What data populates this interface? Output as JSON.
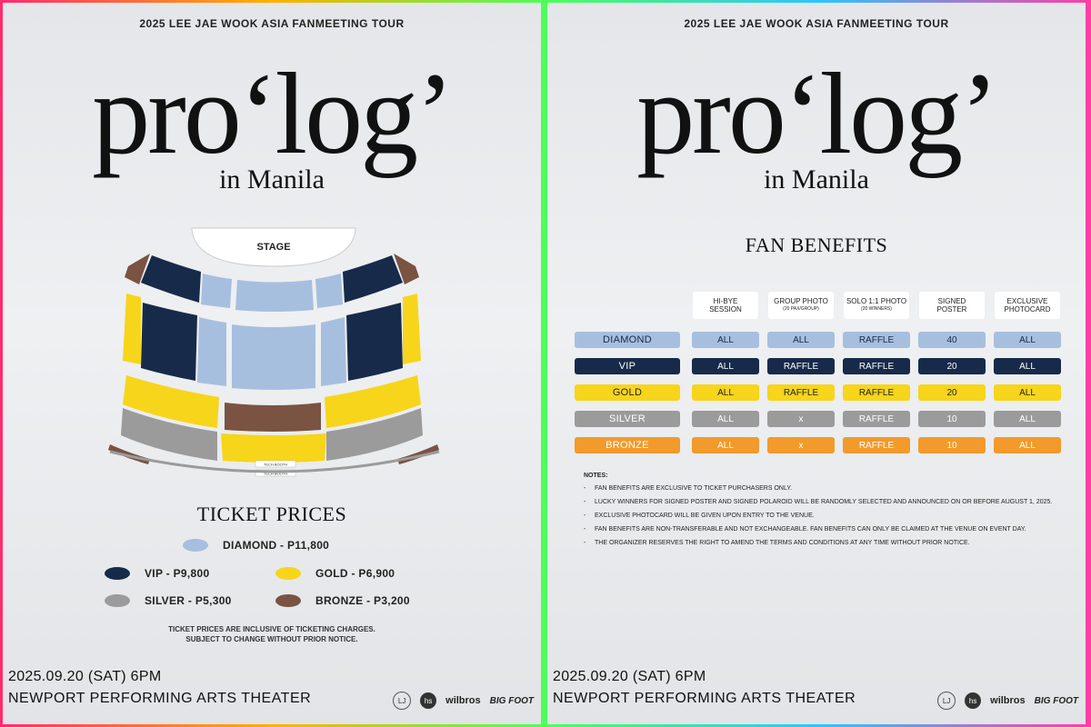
{
  "colors": {
    "diamond": "#a7bfdf",
    "vip": "#172a4a",
    "gold": "#f7d51a",
    "silver": "#9b9b9b",
    "bronze": "#7a5342",
    "bronze_table": "#f29a2b"
  },
  "header": {
    "tour": "2025 LEE JAE WOOK ASIA FANMEETING TOUR",
    "title": "pro‘log’",
    "subtitle": "in Manila"
  },
  "seating": {
    "stage": "STAGE",
    "tech_booth_1": "TECH BOOTH",
    "tech_booth_2": "TECH BOOTH"
  },
  "ticket_prices": {
    "title": "TICKET PRICES",
    "items": [
      {
        "tier": "diamond",
        "label": "DIAMOND - P11,800"
      },
      {
        "tier": "vip",
        "label": "VIP - P9,800"
      },
      {
        "tier": "gold",
        "label": "GOLD - P6,900"
      },
      {
        "tier": "silver",
        "label": "SILVER - P5,300"
      },
      {
        "tier": "bronze",
        "label": "BRONZE - P3,200"
      }
    ],
    "note_line1": "TICKET PRICES ARE INCLUSIVE OF TICKETING CHARGES.",
    "note_line2": "SUBJECT TO CHANGE WITHOUT PRIOR NOTICE."
  },
  "event": {
    "date": "2025.09.20 (SAT) 6PM",
    "venue": "NEWPORT PERFORMING ARTS THEATER"
  },
  "logos": {
    "logo1": "LJ",
    "logo2": "hs",
    "logo3": "wilbros",
    "logo4": "BIG FOOT"
  },
  "fan_benefits": {
    "title": "FAN BENEFITS",
    "headers": [
      {
        "l1": "HI-BYE",
        "l2": "SESSION",
        "sub": ""
      },
      {
        "l1": "GROUP PHOTO",
        "l2": "",
        "sub": "(20 PAX/GROUP)"
      },
      {
        "l1": "SOLO 1:1 PHOTO",
        "l2": "",
        "sub": "(20 WINNERS)"
      },
      {
        "l1": "SIGNED",
        "l2": "POSTER",
        "sub": ""
      },
      {
        "l1": "EXCLUSIVE",
        "l2": "PHOTOCARD",
        "sub": ""
      }
    ],
    "rows": [
      {
        "tier": "DIAMOND",
        "cells": [
          "ALL",
          "ALL",
          "RAFFLE",
          "40",
          "ALL"
        ]
      },
      {
        "tier": "VIP",
        "cells": [
          "ALL",
          "RAFFLE",
          "RAFFLE",
          "20",
          "ALL"
        ]
      },
      {
        "tier": "GOLD",
        "cells": [
          "ALL",
          "RAFFLE",
          "RAFFLE",
          "20",
          "ALL"
        ]
      },
      {
        "tier": "SILVER",
        "cells": [
          "ALL",
          "x",
          "RAFFLE",
          "10",
          "ALL"
        ]
      },
      {
        "tier": "BRONZE",
        "cells": [
          "ALL",
          "x",
          "RAFFLE",
          "10",
          "ALL"
        ]
      }
    ],
    "notes_title": "NOTES:",
    "notes": [
      "FAN BENEFITS ARE EXCLUSIVE TO TICKET PURCHASERS ONLY.",
      "LUCKY WINNERS FOR SIGNED POSTER AND SIGNED POLAROID WILL BE RANDOMLY SELECTED AND ANNOUNCED ON OR BEFORE AUGUST 1, 2025.",
      "EXCLUSIVE PHOTOCARD WILL BE GIVEN UPON ENTRY TO THE VENUE.",
      "FAN BENEFITS ARE NON-TRANSFERABLE AND NOT EXCHANGEABLE. FAN BENEFITS CAN ONLY BE CLAIMED AT THE VENUE ON EVENT DAY.",
      "THE ORGANIZER RESERVES THE RIGHT TO AMEND THE TERMS AND CONDITIONS AT ANY TIME WITHOUT PRIOR NOTICE."
    ]
  }
}
